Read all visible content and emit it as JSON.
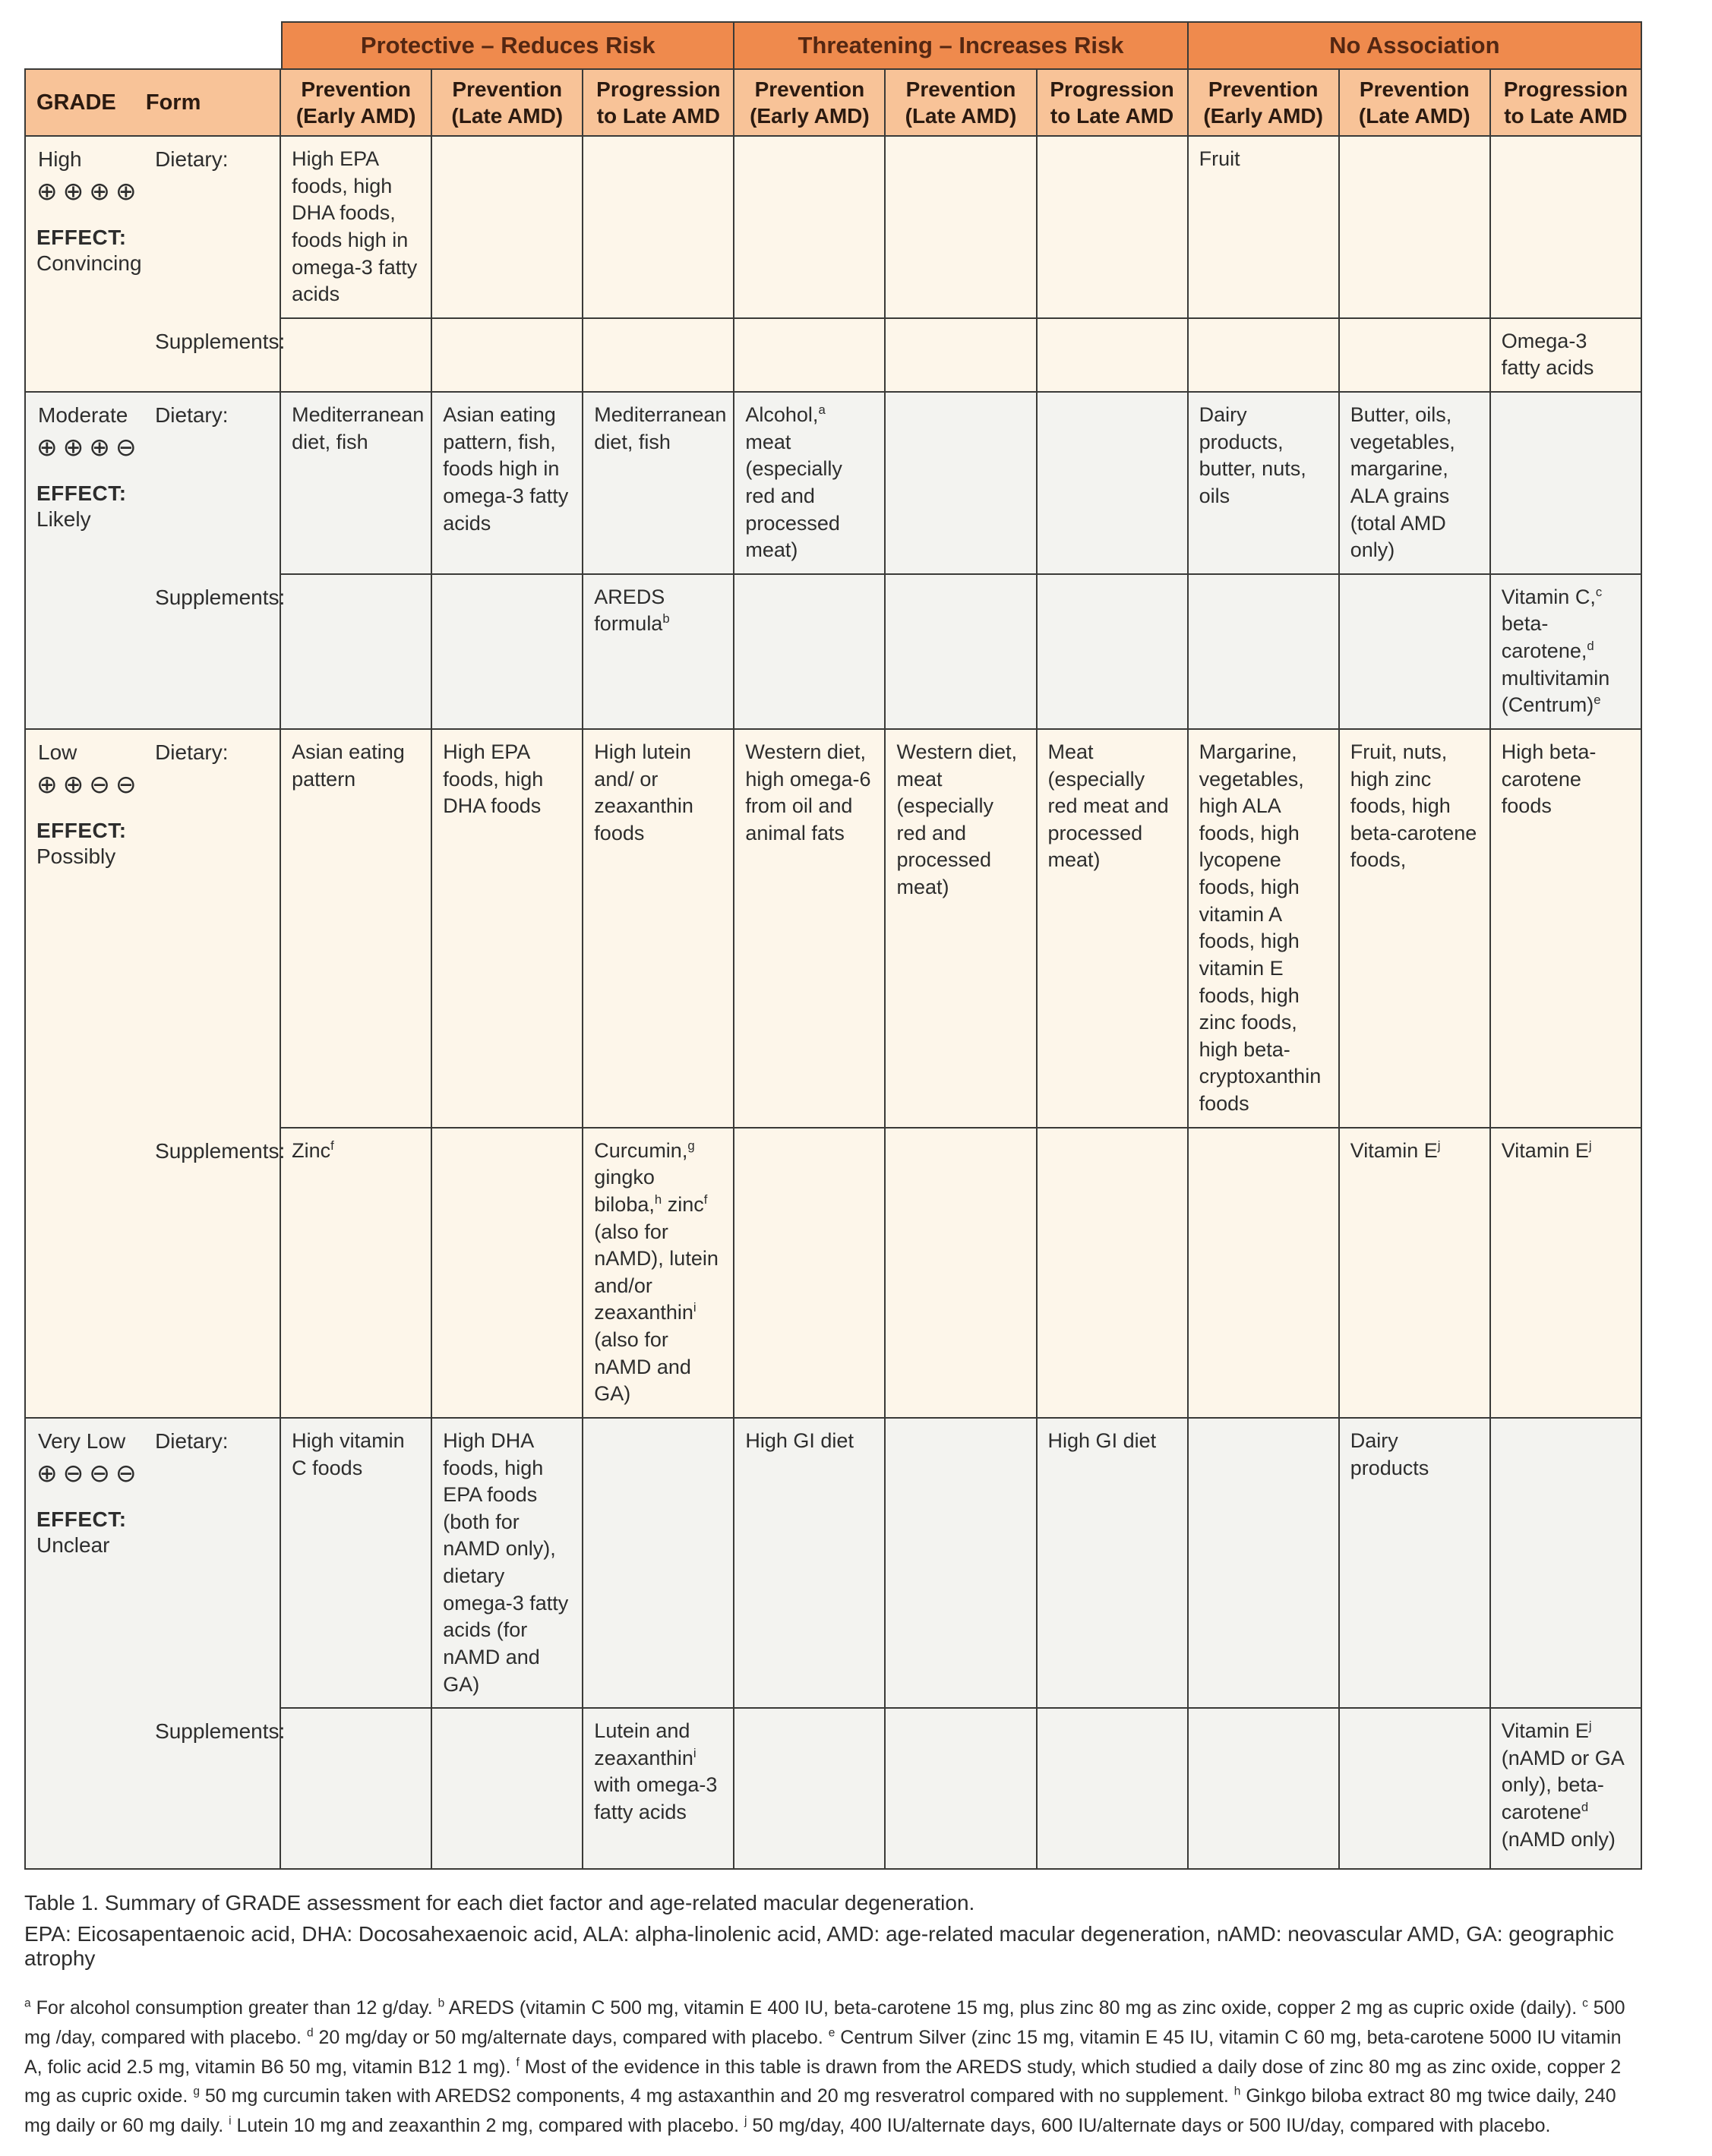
{
  "table": {
    "corner": {
      "grade_label": "GRADE",
      "form_label": "Form"
    },
    "group_headers": [
      "Protective – Reduces Risk",
      "Threatening – Increases Risk",
      "No Association"
    ],
    "column_headers": [
      "Prevention (Early AMD)",
      "Prevention (Late AMD)",
      "Progression to Late AMD"
    ],
    "row_labels": {
      "dietary": "Dietary:",
      "supplements": "Supplements:"
    },
    "grades": [
      {
        "id": "high",
        "name": "High",
        "symbols": "⊕⊕⊕⊕",
        "effect_heading": "EFFECT:",
        "effect": "Convincing",
        "dietary": [
          "High EPA foods, high DHA foods, foods high in omega-3 fatty acids",
          "",
          "",
          "",
          "",
          "",
          "Fruit",
          "",
          ""
        ],
        "supplements": [
          "",
          "",
          "",
          "",
          "",
          "",
          "",
          "",
          "Omega-3 fatty acids"
        ]
      },
      {
        "id": "moderate",
        "name": "Moderate",
        "symbols": "⊕⊕⊕⊖",
        "effect_heading": "EFFECT:",
        "effect": "Likely",
        "dietary": [
          "Mediterranean diet, fish",
          "Asian eating pattern, fish, foods high in omega-3 fatty acids",
          "Mediterranean diet, fish",
          "Alcohol,^a meat (especially red and processed meat)",
          "",
          "",
          "Dairy products, butter, nuts, oils",
          "Butter, oils, vegetables, margarine, ALA grains (total AMD only)",
          ""
        ],
        "supplements": [
          "",
          "",
          "AREDS formula^b",
          "",
          "",
          "",
          "",
          "",
          "Vitamin C,^c beta-carotene,^d multivitamin (Centrum)^e"
        ]
      },
      {
        "id": "low",
        "name": "Low",
        "symbols": "⊕⊕⊖⊖",
        "effect_heading": "EFFECT:",
        "effect": "Possibly",
        "dietary": [
          "Asian eating pattern",
          "High EPA foods, high DHA foods",
          "High lutein and/ or zeaxanthin foods",
          "Western diet, high omega-6 from oil and animal fats",
          "Western diet, meat (especially red and processed meat)",
          "Meat (especially red meat and processed meat)",
          "Margarine, vegetables, high ALA foods, high lycopene foods, high vitamin A foods, high vitamin E foods, high zinc foods, high beta-cryptoxanthin foods",
          "Fruit, nuts, high zinc foods, high beta-carotene foods,",
          "High beta-carotene foods"
        ],
        "supplements": [
          "Zinc^f",
          "",
          "Curcumin,^g gingko biloba,^h zinc^f (also for nAMD), lutein and/or zeaxanthin^i (also for nAMD and GA)",
          "",
          "",
          "",
          "",
          "Vitamin E^j",
          "Vitamin E^j"
        ]
      },
      {
        "id": "very-low",
        "name": "Very Low",
        "symbols": "⊕⊖⊖⊖",
        "effect_heading": "EFFECT:",
        "effect": "Unclear",
        "dietary": [
          "High vitamin C foods",
          "High DHA foods, high EPA foods (both for nAMD only), dietary omega-3 fatty acids (for nAMD and GA)",
          "",
          "High GI diet",
          "",
          "High GI diet",
          "",
          "Dairy products",
          ""
        ],
        "supplements": [
          "",
          "",
          "Lutein and zeaxanthin^i with omega-3 fatty acids",
          "",
          "",
          "",
          "",
          "",
          "Vitamin E^j (nAMD or GA only), beta-carotene^d (nAMD only)"
        ]
      }
    ]
  },
  "caption": {
    "title": "Table 1. Summary of GRADE assessment for each diet factor and age-related macular degeneration.",
    "abbreviations": "EPA: Eicosapentaenoic acid, DHA: Docosahexaenoic acid, ALA: alpha-linolenic acid, AMD: age-related macular degeneration, nAMD: neovascular AMD, GA: geographic atrophy"
  },
  "footnotes": "^a For alcohol consumption greater than 12 g/day.  ^b AREDS (vitamin C 500 mg, vitamin E 400 IU, beta-carotene 15 mg, plus zinc 80 mg as zinc oxide, copper 2 mg as cupric oxide (daily). ^c 500 mg /day, compared with placebo.  ^d 20 mg/day or 50 mg/alternate days, compared with placebo.  ^e Centrum Silver (zinc 15 mg, vitamin E 45 IU, vitamin C 60 mg, beta-carotene 5000 IU vitamin A, folic acid 2.5 mg, vitamin B6 50 mg, vitamin B12 1 mg).  ^f Most of the evidence in this table is drawn from the AREDS study, which studied a daily dose of zinc 80 mg as zinc oxide, copper 2 mg as cupric oxide.  ^g 50 mg curcumin taken with AREDS2 components, 4 mg astaxanthin and 20 mg resveratrol compared with no supplement.  ^h Ginkgo biloba extract 80 mg twice daily, 240 mg daily or 60 mg daily.  ^i Lutein 10 mg and zeaxanthin 2 mg, compared with placebo.  ^j 50 mg/day, 400 IU/alternate days, 600 IU/alternate days or 500 IU/day, compared with placebo.",
  "colors": {
    "group_header_bg": "#ef8a4d",
    "subheader_bg": "#f8c398",
    "cream_row_bg": "#fdf6ea",
    "gray_row_bg": "#f3f3f0",
    "border": "#3a3a38",
    "header_text": "#542712",
    "body_text": "#2d2d2d"
  }
}
